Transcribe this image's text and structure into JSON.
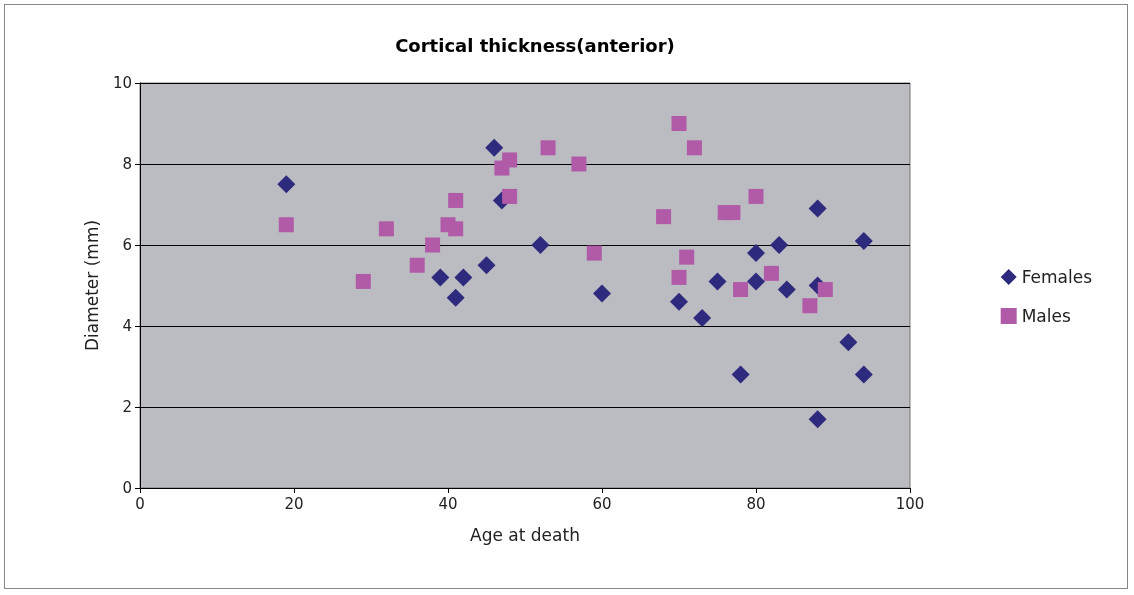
{
  "chart_data": {
    "type": "scatter",
    "title": "Cortical thickness(anterior)",
    "xlabel": "Age at death",
    "ylabel": "Diameter (mm)",
    "xlim": [
      0,
      100
    ],
    "xticks": [
      0,
      20,
      40,
      60,
      80,
      100
    ],
    "ylim": [
      0,
      10
    ],
    "yticks": [
      0,
      2,
      4,
      6,
      8,
      10
    ],
    "grid": "y",
    "legend": "right",
    "series": [
      {
        "name": "Females",
        "color": "#2e2a7e",
        "marker": "diamond",
        "x": [
          19,
          46,
          47,
          39,
          41,
          42,
          45,
          52,
          60,
          70,
          73,
          75,
          78,
          80,
          80,
          83,
          84,
          88,
          88,
          88,
          92,
          94,
          94
        ],
        "values": [
          7.5,
          8.4,
          7.1,
          5.2,
          4.7,
          5.2,
          5.5,
          6.0,
          4.8,
          4.6,
          4.2,
          5.1,
          2.8,
          5.8,
          5.1,
          6.0,
          4.9,
          6.9,
          5.0,
          1.7,
          3.6,
          6.1,
          2.8
        ]
      },
      {
        "name": "Males",
        "color": "#b05aa8",
        "marker": "square",
        "x": [
          19,
          29,
          32,
          36,
          38,
          40,
          41,
          41,
          47,
          48,
          48,
          53,
          57,
          59,
          68,
          70,
          70,
          71,
          72,
          76,
          77,
          78,
          80,
          82,
          87,
          89
        ],
        "values": [
          6.5,
          5.1,
          6.4,
          5.5,
          6.0,
          6.5,
          7.1,
          6.4,
          7.9,
          8.1,
          7.2,
          8.4,
          8.0,
          5.8,
          6.7,
          9.0,
          5.2,
          5.7,
          8.4,
          6.8,
          6.8,
          4.9,
          7.2,
          5.3,
          4.5,
          4.9
        ]
      }
    ]
  }
}
